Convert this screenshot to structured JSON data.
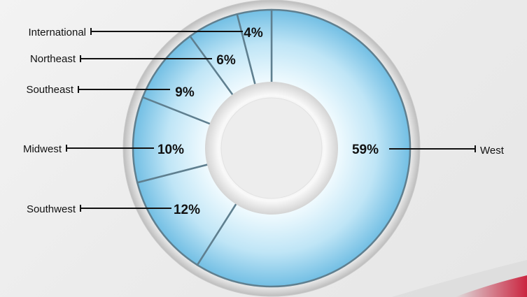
{
  "chart_data": {
    "type": "pie",
    "variant": "donut",
    "title": "",
    "start_angle_deg": 0,
    "direction": "clockwise",
    "slices": [
      {
        "label": "West",
        "value": 59,
        "value_label": "59%"
      },
      {
        "label": "Southwest",
        "value": 12,
        "value_label": "12%"
      },
      {
        "label": "Midwest",
        "value": 10,
        "value_label": "10%"
      },
      {
        "label": "Southeast",
        "value": 9,
        "value_label": "9%"
      },
      {
        "label": "Northeast",
        "value": 6,
        "value_label": "6%"
      },
      {
        "label": "International",
        "value": 4,
        "value_label": "4%"
      }
    ]
  },
  "colors": {
    "slice_fill_inner": "#f2fbff",
    "slice_fill_outer": "#7cc6e8",
    "slice_divider": "#5f7f8f",
    "ring_bezel": "#e9e9e9",
    "leader_line": "#111111",
    "swoosh_accent": "#c8102e"
  }
}
